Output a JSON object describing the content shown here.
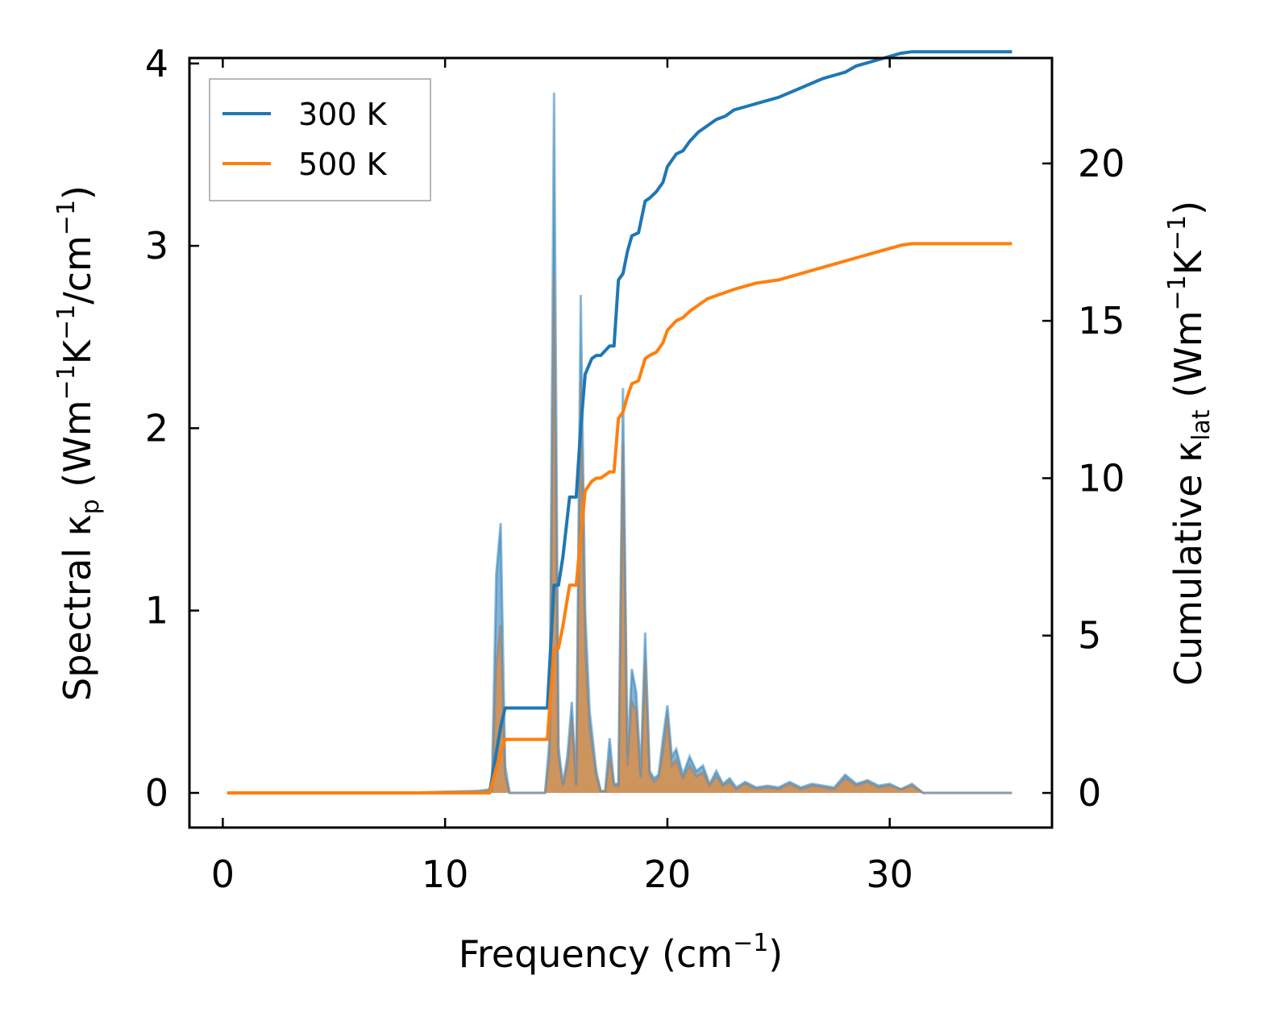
{
  "chart_data": {
    "type": "line",
    "title": "",
    "xlabel": {
      "main": "Frequency (cm",
      "sup": "−1",
      "tail": ")"
    },
    "ylabel_left": {
      "p1": "Spectral κ",
      "sub": "p",
      "p2": " (Wm",
      "sup1": "−1",
      "p3": "K",
      "sup2": "−1",
      "p4": "/cm",
      "sup3": "−1",
      "p5": ")"
    },
    "ylabel_right": {
      "p1": "Cumulative κ",
      "sub": "lat",
      "p2": " (Wm",
      "sup1": "−1",
      "p3": "K",
      "sup2": "−1",
      "p4": ")"
    },
    "xlim": [
      -1.5,
      37.3
    ],
    "ylim_left": [
      -0.19,
      4.03
    ],
    "ylim_right": [
      -1.1,
      23.35
    ],
    "x_ticks": [
      0,
      10,
      20,
      30
    ],
    "x_tick_labels": [
      "0",
      "10",
      "20",
      "30"
    ],
    "y_left_ticks": [
      0,
      1,
      2,
      3,
      4
    ],
    "y_left_tick_labels": [
      "0",
      "1",
      "2",
      "3",
      "4"
    ],
    "y_right_ticks": [
      0,
      5,
      10,
      15,
      20
    ],
    "y_right_tick_labels": [
      "0",
      "5",
      "10",
      "15",
      "20"
    ],
    "legend": {
      "position": "top-left",
      "entries": [
        "300 K",
        "500 K"
      ]
    },
    "colors": {
      "s300": "#1f77b4",
      "s500": "#ff7f0e",
      "fill300": "#1f77b4",
      "fill500": "#ff7f0e",
      "edge": "#8c8c8c"
    },
    "spectral": [
      {
        "name": "300 K",
        "axis": "left",
        "x": [
          0.2,
          8,
          11.5,
          12.0,
          12.1,
          12.3,
          12.5,
          12.7,
          12.9,
          14.5,
          14.7,
          14.9,
          15.1,
          15.3,
          15.5,
          15.7,
          15.9,
          16.1,
          16.3,
          16.5,
          16.8,
          17.0,
          17.2,
          17.4,
          17.6,
          17.8,
          18.0,
          18.2,
          18.4,
          18.6,
          18.8,
          19.0,
          19.2,
          19.4,
          19.6,
          19.8,
          20.0,
          20.2,
          20.4,
          20.7,
          21.0,
          21.3,
          21.6,
          21.9,
          22.2,
          22.5,
          22.8,
          23.1,
          23.5,
          24,
          24.5,
          25,
          25.5,
          26,
          26.5,
          27,
          27.5,
          28,
          28.5,
          29,
          29.5,
          30,
          30.5,
          31,
          31.5,
          32,
          33,
          34,
          35.5
        ],
        "values": [
          0,
          0,
          0.01,
          0.02,
          0.02,
          1.2,
          1.48,
          0.15,
          0,
          0,
          0.3,
          3.84,
          0.25,
          0.05,
          0.2,
          0.5,
          0.05,
          2.73,
          1.0,
          0.45,
          0.12,
          0.01,
          0.01,
          0.3,
          0.05,
          0.05,
          2.22,
          0.2,
          0.68,
          0.55,
          0.1,
          0.88,
          0.12,
          0.08,
          0.1,
          0.3,
          0.48,
          0.2,
          0.24,
          0.1,
          0.2,
          0.12,
          0.15,
          0.05,
          0.12,
          0.05,
          0.08,
          0.03,
          0.06,
          0.03,
          0.04,
          0.03,
          0.06,
          0.03,
          0.05,
          0.04,
          0.03,
          0.1,
          0.05,
          0.07,
          0.04,
          0.05,
          0.02,
          0.05,
          0.0,
          0,
          0,
          0,
          0
        ]
      },
      {
        "name": "500 K",
        "axis": "left",
        "x": [
          0.2,
          8,
          11.5,
          12.0,
          12.1,
          12.3,
          12.5,
          12.7,
          12.9,
          14.5,
          14.7,
          14.9,
          15.1,
          15.3,
          15.5,
          15.7,
          15.9,
          16.1,
          16.3,
          16.5,
          16.8,
          17.0,
          17.2,
          17.4,
          17.6,
          17.8,
          18.0,
          18.2,
          18.4,
          18.6,
          18.8,
          19.0,
          19.2,
          19.4,
          19.6,
          19.8,
          20.0,
          20.2,
          20.4,
          20.7,
          21.0,
          21.3,
          21.6,
          21.9,
          22.2,
          22.5,
          22.8,
          23.1,
          23.5,
          24,
          24.5,
          25,
          25.5,
          26,
          26.5,
          27,
          27.5,
          28,
          28.5,
          29,
          29.5,
          30,
          30.5,
          31,
          31.5,
          32,
          33,
          34,
          35.5
        ],
        "values": [
          0,
          0,
          0.01,
          0.01,
          0.01,
          0.7,
          0.92,
          0.1,
          0,
          0,
          0.2,
          2.84,
          0.2,
          0.04,
          0.15,
          0.4,
          0.04,
          2.25,
          0.8,
          0.35,
          0.09,
          0.01,
          0.01,
          0.2,
          0.04,
          0.04,
          1.92,
          0.15,
          0.5,
          0.45,
          0.08,
          0.72,
          0.1,
          0.06,
          0.08,
          0.22,
          0.42,
          0.15,
          0.18,
          0.08,
          0.15,
          0.09,
          0.11,
          0.04,
          0.09,
          0.04,
          0.06,
          0.02,
          0.05,
          0.02,
          0.03,
          0.02,
          0.05,
          0.02,
          0.04,
          0.03,
          0.02,
          0.08,
          0.04,
          0.06,
          0.03,
          0.04,
          0.02,
          0.04,
          0.0,
          0,
          0,
          0,
          0
        ]
      }
    ],
    "cumulative": [
      {
        "name": "300 K",
        "axis": "right",
        "x": [
          0.2,
          12.0,
          12.5,
          12.7,
          14.5,
          14.6,
          14.9,
          15.1,
          15.3,
          15.6,
          15.9,
          16.1,
          16.3,
          16.6,
          16.8,
          17.0,
          17.4,
          17.6,
          17.8,
          18.0,
          18.2,
          18.4,
          18.7,
          19.0,
          19.2,
          19.5,
          19.8,
          20.0,
          20.4,
          20.7,
          21.0,
          21.4,
          21.8,
          22.2,
          22.6,
          23.0,
          23.5,
          24,
          25,
          26,
          27,
          27.5,
          28,
          28.5,
          29,
          29.5,
          30,
          30.5,
          31,
          32,
          33,
          35.5
        ],
        "values": [
          0,
          0,
          2.1,
          2.7,
          2.7,
          2.7,
          6.6,
          6.6,
          7.5,
          9.4,
          9.4,
          11.6,
          13.3,
          13.8,
          13.9,
          13.9,
          14.2,
          14.2,
          16.3,
          16.5,
          17.2,
          17.7,
          17.8,
          18.8,
          18.9,
          19.1,
          19.4,
          19.9,
          20.3,
          20.4,
          20.7,
          21.0,
          21.2,
          21.4,
          21.5,
          21.7,
          21.8,
          21.9,
          22.1,
          22.4,
          22.7,
          22.8,
          22.9,
          23.1,
          23.2,
          23.3,
          23.4,
          23.5,
          23.55,
          23.55,
          23.55,
          23.55
        ]
      },
      {
        "name": "500 K",
        "axis": "right",
        "x": [
          0.2,
          12.0,
          12.5,
          12.7,
          14.5,
          14.6,
          14.9,
          15.1,
          15.3,
          15.6,
          15.9,
          16.1,
          16.3,
          16.6,
          16.8,
          17.0,
          17.4,
          17.6,
          17.8,
          18.0,
          18.2,
          18.4,
          18.7,
          19.0,
          19.2,
          19.5,
          19.8,
          20.0,
          20.4,
          20.7,
          21.0,
          21.4,
          21.8,
          22.2,
          22.6,
          23.0,
          23.5,
          24,
          25,
          26,
          27,
          27.5,
          28,
          28.5,
          29,
          29.5,
          30,
          30.5,
          31,
          32,
          33,
          35.5
        ],
        "values": [
          0,
          0,
          1.3,
          1.7,
          1.7,
          1.7,
          4.6,
          4.6,
          5.3,
          6.6,
          6.6,
          8.1,
          9.6,
          9.9,
          10.0,
          10.0,
          10.2,
          10.2,
          11.9,
          12.1,
          12.6,
          13.0,
          13.1,
          13.8,
          13.9,
          14.0,
          14.3,
          14.7,
          15.0,
          15.1,
          15.3,
          15.5,
          15.7,
          15.8,
          15.9,
          16.0,
          16.1,
          16.2,
          16.3,
          16.5,
          16.7,
          16.8,
          16.9,
          17.0,
          17.1,
          17.2,
          17.3,
          17.4,
          17.45,
          17.45,
          17.45,
          17.45
        ]
      }
    ]
  }
}
